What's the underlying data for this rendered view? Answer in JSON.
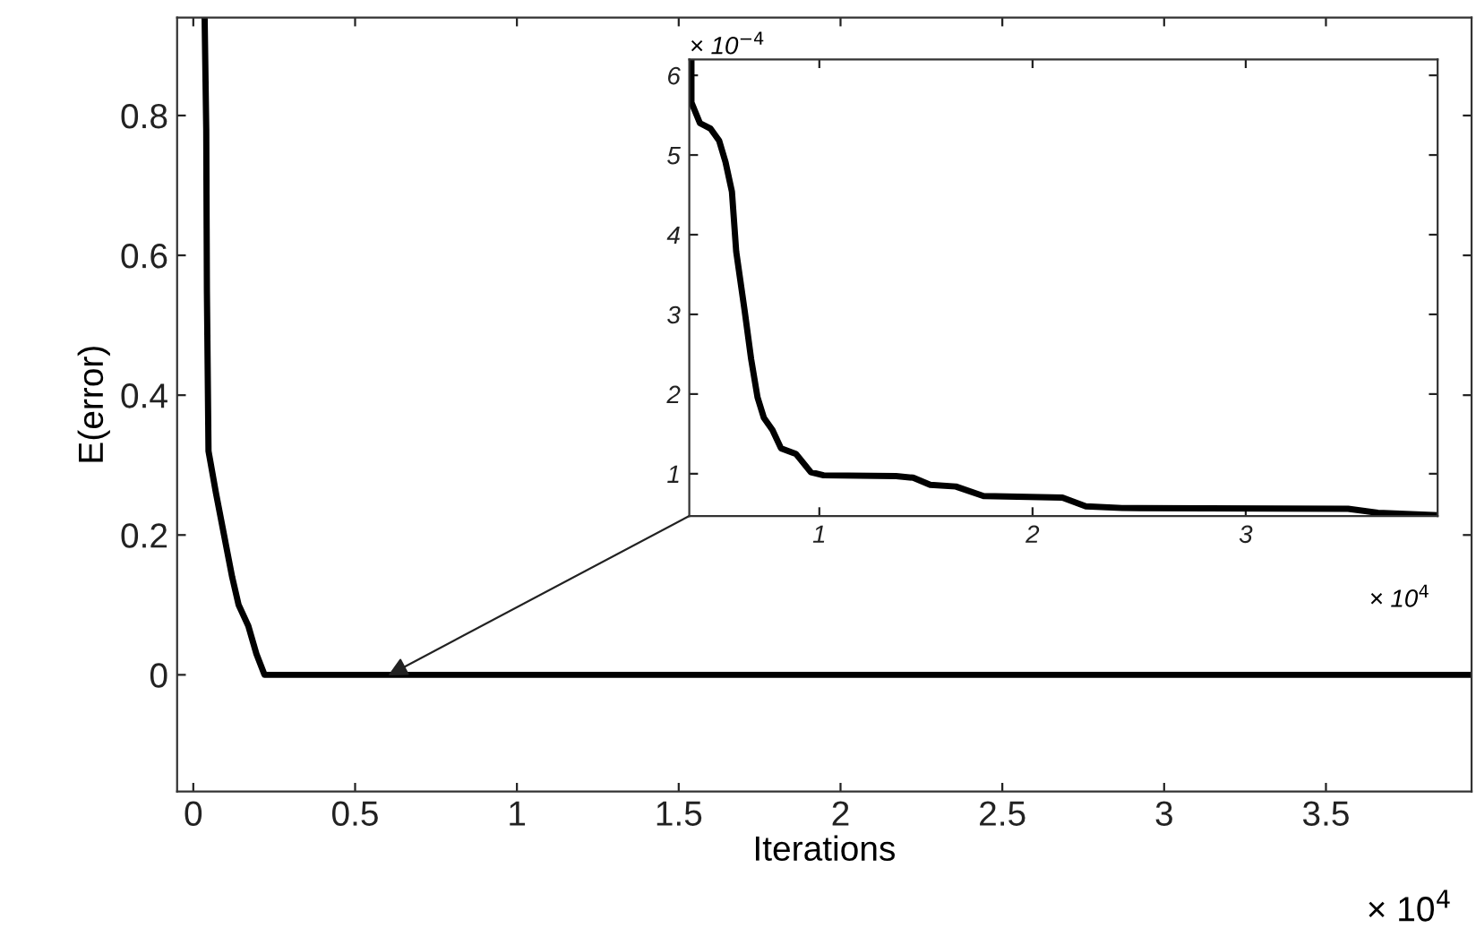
{
  "chart_data": [
    {
      "type": "line",
      "xlabel": "Iterations",
      "ylabel": "E(error)",
      "xlim": [
        -0.05,
        3.95
      ],
      "ylim": [
        -0.167,
        0.94
      ],
      "xticks": [
        0,
        0.5,
        1,
        1.5,
        2,
        2.5,
        3,
        3.5
      ],
      "yticks": [
        0,
        0.2,
        0.4,
        0.6,
        0.8
      ],
      "series": [
        {
          "color": "#000000",
          "x": [
            0.035,
            0.04,
            0.042,
            0.047,
            0.07,
            0.095,
            0.12,
            0.14,
            0.17,
            0.195,
            0.22,
            3.95
          ],
          "values": [
            0.94,
            0.78,
            0.55,
            0.32,
            0.26,
            0.2,
            0.14,
            0.1,
            0.07,
            0.03,
            0,
            0
          ]
        }
      ],
      "annotations": [
        "× 10$^{4}$"
      ],
      "grid": false,
      "legend": false
    },
    {
      "type": "line",
      "xlim": [
        0.39,
        3.9
      ],
      "ylim": [
        0.47,
        6.2
      ],
      "xticks": [
        1,
        2,
        3
      ],
      "yticks": [
        1,
        2,
        3,
        4,
        5,
        6
      ],
      "series": [
        {
          "color": "#000000",
          "x": [
            0.4,
            0.4,
            0.44,
            0.49,
            0.53,
            0.56,
            0.59,
            0.61,
            0.65,
            0.68,
            0.71,
            0.74,
            0.78,
            0.82,
            0.89,
            0.96,
            1.02,
            1.36,
            1.44,
            1.52,
            1.64,
            1.77,
            2.14,
            2.25,
            2.42,
            3.48,
            3.62,
            3.9
          ],
          "values": [
            6.19,
            5.66,
            5.4,
            5.33,
            5.18,
            4.91,
            4.54,
            3.79,
            3.04,
            2.44,
            1.96,
            1.7,
            1.55,
            1.32,
            1.25,
            1.02,
            0.98,
            0.97,
            0.95,
            0.86,
            0.84,
            0.72,
            0.7,
            0.59,
            0.57,
            0.56,
            0.51,
            0.48
          ]
        }
      ],
      "annotations": [
        "× 10$^{−4}$",
        "× 10$^{4}$"
      ],
      "grid": false,
      "legend": false
    }
  ]
}
